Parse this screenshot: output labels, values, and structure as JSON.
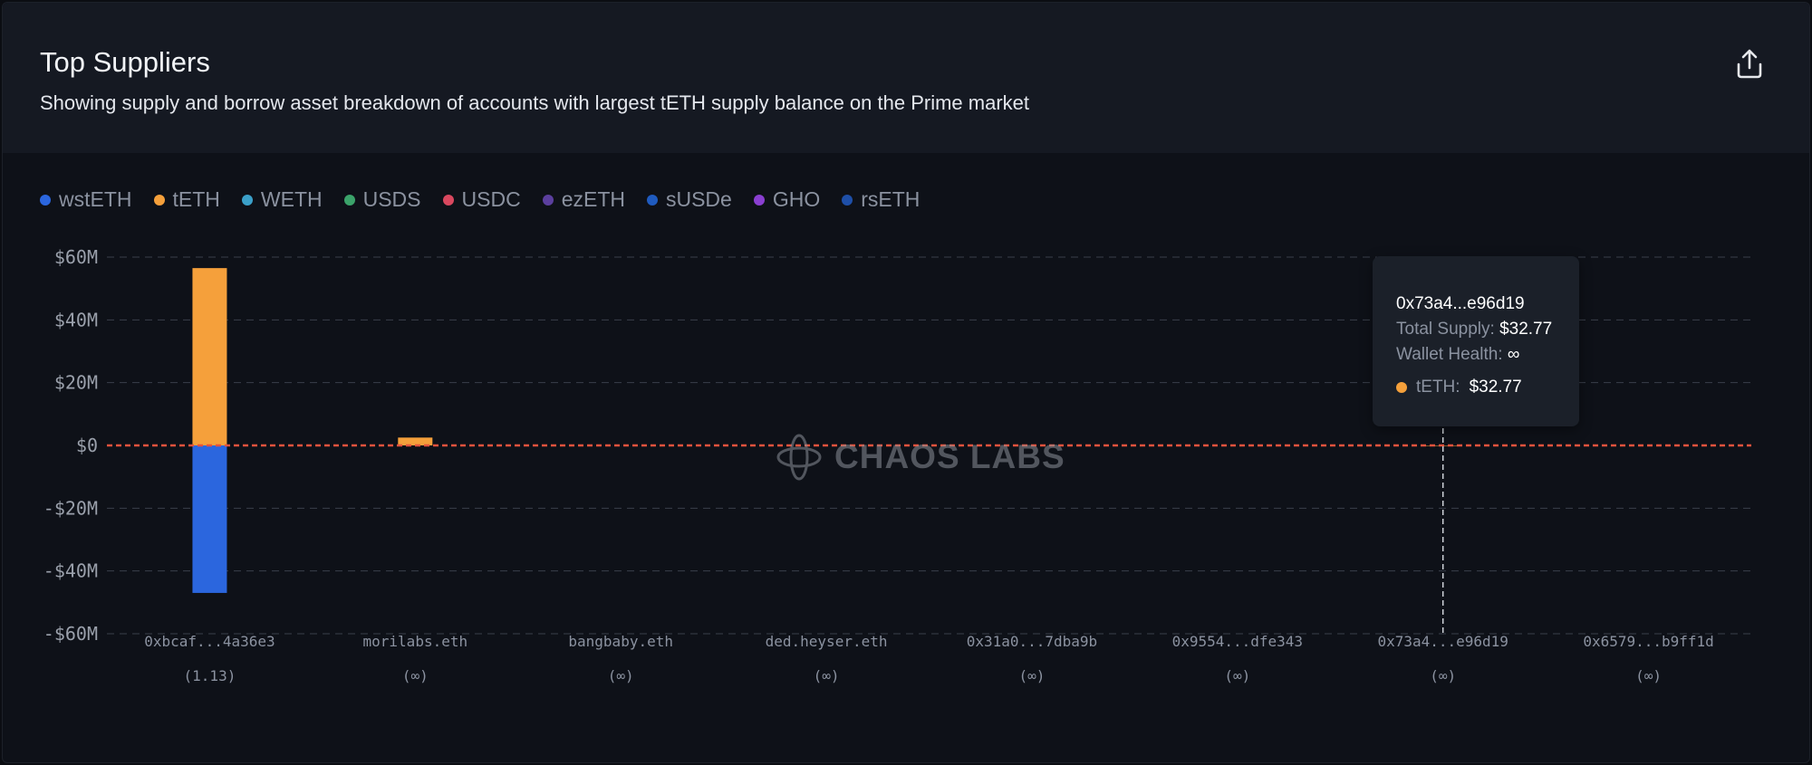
{
  "header": {
    "title": "Top Suppliers",
    "subtitle": "Showing supply and borrow asset breakdown of accounts with largest tETH supply balance on the Prime market"
  },
  "watermark": {
    "text": "CHAOS LABS"
  },
  "tooltip": {
    "address": "0x73a4...e96d19",
    "total_supply_label": "Total Supply",
    "total_supply_value": "$32.77",
    "wallet_health_label": "Wallet Health",
    "wallet_health_value": "∞",
    "asset_label": "tETH:",
    "asset_value": "$32.77"
  },
  "colors": {
    "tETH": "#f5a03b",
    "wstETH": "#2b66de",
    "zero_line": "#e5533d"
  },
  "chart_data": {
    "type": "bar",
    "stacked": true,
    "categories": [
      "0xbcaf...4a36e3",
      "morilabs.eth",
      "bangbaby.eth",
      "ded.heyser.eth",
      "0x31a0...7dba9b",
      "0x9554...dfe343",
      "0x73a4...e96d19",
      "0x6579...b9ff1d"
    ],
    "health": [
      "(1.13)",
      "(∞)",
      "(∞)",
      "(∞)",
      "(∞)",
      "(∞)",
      "(∞)",
      "(∞)"
    ],
    "legend": [
      {
        "name": "wstETH",
        "color": "#2b66de"
      },
      {
        "name": "tETH",
        "color": "#f5a03b"
      },
      {
        "name": "WETH",
        "color": "#3ba0c9"
      },
      {
        "name": "USDS",
        "color": "#3ba36a"
      },
      {
        "name": "USDC",
        "color": "#d9485f"
      },
      {
        "name": "ezETH",
        "color": "#5b3f9e"
      },
      {
        "name": "sUSDe",
        "color": "#1f5bbf"
      },
      {
        "name": "GHO",
        "color": "#8a3fd1"
      },
      {
        "name": "rsETH",
        "color": "#1e4fa8"
      }
    ],
    "series": [
      {
        "name": "tETH",
        "color": "#f5a03b",
        "values": [
          56.5,
          2.5,
          0,
          0,
          0,
          0,
          3.277e-05,
          0
        ]
      },
      {
        "name": "wstETH",
        "color": "#2b66de",
        "values": [
          -47,
          0,
          0,
          0,
          0,
          0,
          0,
          0
        ]
      }
    ],
    "ylim": [
      -60,
      60
    ],
    "yticks": [
      60,
      40,
      20,
      0,
      -20,
      -40,
      -60
    ],
    "ytick_labels": [
      "$60M",
      "$40M",
      "$20M",
      "$0",
      "-$20M",
      "-$40M",
      "-$60M"
    ],
    "units": "$M",
    "grid": true,
    "legend_position": "top-left"
  }
}
